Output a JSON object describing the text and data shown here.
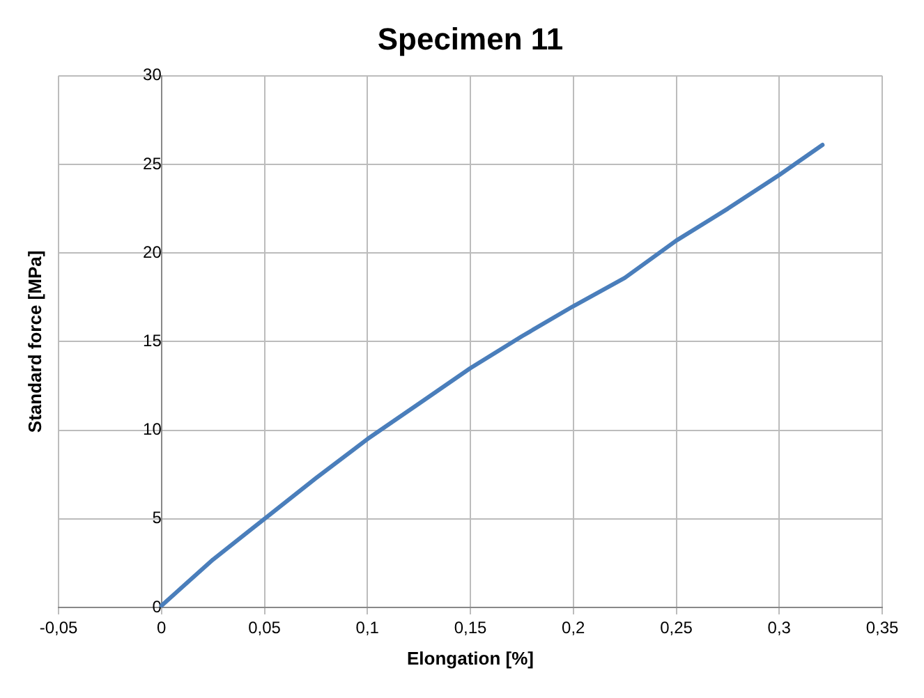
{
  "chart_data": {
    "type": "line",
    "title": "Specimen 11",
    "xlabel": "Elongation [%]",
    "ylabel": "Standard force [MPa]",
    "x": [
      0,
      0.025,
      0.05,
      0.075,
      0.1,
      0.125,
      0.15,
      0.175,
      0.2,
      0.225,
      0.25,
      0.275,
      0.3,
      0.321
    ],
    "series": [
      {
        "color": "#4a7ebb",
        "values": [
          0.1,
          2.7,
          5.0,
          7.3,
          9.5,
          11.5,
          13.5,
          15.3,
          17.0,
          18.6,
          20.7,
          22.5,
          24.4,
          26.1
        ]
      }
    ],
    "xlim": [
      -0.05,
      0.35
    ],
    "xticks": [
      {
        "value": -0.05,
        "label": "-0,05"
      },
      0,
      {
        "value": 0.05,
        "label": "0,05"
      },
      {
        "value": 0.1,
        "label": "0,1"
      },
      {
        "value": 0.15,
        "label": "0,15"
      },
      {
        "value": 0.2,
        "label": "0,2"
      },
      {
        "value": 0.25,
        "label": "0,25"
      },
      {
        "value": 0.3,
        "label": "0,3"
      },
      {
        "value": 0.35,
        "label": "0,35"
      }
    ],
    "ylim": [
      0,
      30
    ],
    "yticks": [
      0,
      5,
      10,
      15,
      20,
      25,
      30
    ],
    "grid": true,
    "marker": "none",
    "line_style": "solid",
    "legend": false
  }
}
